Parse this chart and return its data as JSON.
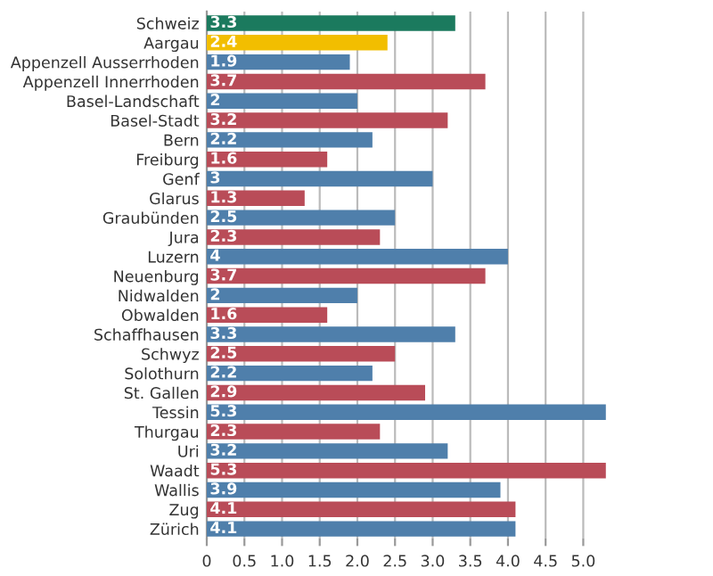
{
  "chart_data": {
    "type": "bar",
    "orientation": "horizontal",
    "categories": [
      "Schweiz",
      "Aargau",
      "Appenzell Ausserrhoden",
      "Appenzell Innerrhoden",
      "Basel-Landschaft",
      "Basel-Stadt",
      "Bern",
      "Freiburg",
      "Genf",
      "Glarus",
      "Graubünden",
      "Jura",
      "Luzern",
      "Neuenburg",
      "Nidwalden",
      "Obwalden",
      "Schaffhausen",
      "Schwyz",
      "Solothurn",
      "St. Gallen",
      "Tessin",
      "Thurgau",
      "Uri",
      "Waadt",
      "Wallis",
      "Zug",
      "Zürich"
    ],
    "values": [
      3.3,
      2.4,
      1.9,
      3.7,
      2,
      3.2,
      2.2,
      1.6,
      3,
      1.3,
      2.5,
      2.3,
      4,
      3.7,
      2,
      1.6,
      3.3,
      2.5,
      2.2,
      2.9,
      5.3,
      2.3,
      3.2,
      5.3,
      3.9,
      4.1,
      4.1
    ],
    "colors": [
      "#1b7a5e",
      "#f2be00",
      "#4f7fab",
      "#b94c58",
      "#4f7fab",
      "#b94c58",
      "#4f7fab",
      "#b94c58",
      "#4f7fab",
      "#b94c58",
      "#4f7fab",
      "#b94c58",
      "#4f7fab",
      "#b94c58",
      "#4f7fab",
      "#b94c58",
      "#4f7fab",
      "#b94c58",
      "#4f7fab",
      "#b94c58",
      "#4f7fab",
      "#b94c58",
      "#4f7fab",
      "#b94c58",
      "#4f7fab",
      "#b94c58",
      "#4f7fab"
    ],
    "xlim": [
      0,
      5.35
    ],
    "xticks": [
      0,
      0.5,
      {
        "value": 1,
        "label": "1.0"
      },
      1.5,
      {
        "value": 2,
        "label": "2.0"
      },
      2.5,
      {
        "value": 3,
        "label": "3.0"
      },
      3.5,
      {
        "value": 4,
        "label": "4.0"
      },
      4.5,
      {
        "value": 5,
        "label": "5.0"
      }
    ],
    "grid": "x",
    "data_labels": true,
    "legend": false
  }
}
